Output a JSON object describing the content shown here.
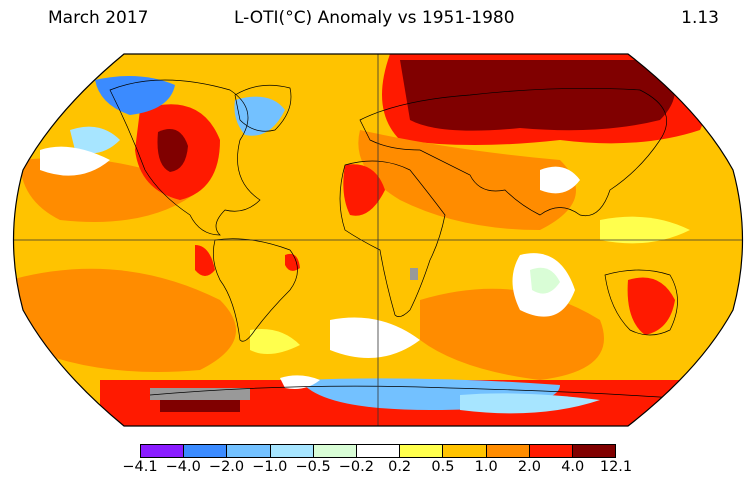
{
  "header": {
    "date": "March 2017",
    "title": "L-OTI(°C) Anomaly vs 1951-1980",
    "global_mean": "1.13"
  },
  "legend": {
    "ticks": [
      "−4.1",
      "−4.0",
      "−2.0",
      "−1.0",
      "−0.5",
      "−0.2",
      "0.2",
      "0.5",
      "1.0",
      "2.0",
      "4.0",
      "12.1"
    ],
    "colors": [
      "#8a1cff",
      "#3b8bff",
      "#73c1ff",
      "#a7e5ff",
      "#d9fdd6",
      "#ffffff",
      "#ffff4d",
      "#ffc300",
      "#ff8c00",
      "#ff1a00",
      "#800000"
    ]
  }
}
